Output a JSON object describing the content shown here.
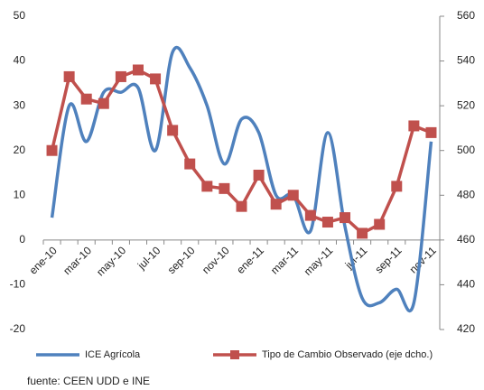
{
  "chart_data": {
    "type": "line",
    "categories": [
      "ene-10",
      null,
      "mar-10",
      null,
      "may-10",
      null,
      "jul-10",
      null,
      "sep-10",
      null,
      "nov-10",
      null,
      "ene-11",
      null,
      "mar-11",
      null,
      "may-11",
      null,
      "jul-11",
      null,
      "sep-11",
      null,
      "nov-11"
    ],
    "series": [
      {
        "name": "ICE Agrícola",
        "color": "#4f81bd",
        "values": [
          5,
          30,
          22,
          33,
          33,
          34,
          20,
          42,
          38.5,
          30,
          17,
          27,
          24,
          10,
          10,
          2,
          24,
          3,
          -13,
          -14,
          -11,
          -14,
          22
        ]
      },
      {
        "name": "Tipo de Cambio Observado (eje dcho.)",
        "color": "#c0504d",
        "axis": "y2",
        "marker": "square",
        "values": [
          500,
          533,
          523,
          521,
          533,
          536,
          532,
          509,
          494,
          484,
          483,
          475,
          489,
          476,
          480,
          471,
          468,
          470,
          463,
          467,
          484,
          511,
          508
        ]
      }
    ],
    "ylim": [
      -20,
      50
    ],
    "yticks": [
      -20,
      -10,
      0,
      10,
      20,
      30,
      40,
      50
    ],
    "y2lim": [
      420,
      560
    ],
    "y2ticks": [
      420,
      440,
      460,
      480,
      500,
      520,
      540,
      560
    ],
    "grid": false,
    "legend": "bottom",
    "source": "fuente: CEEN UDD e INE"
  }
}
